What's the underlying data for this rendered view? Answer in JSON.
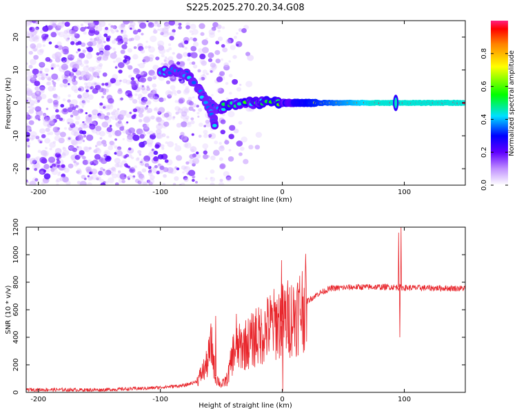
{
  "title": "S225.2025.270.20.34.G08",
  "spectrogram": {
    "type": "heatmap",
    "xlabel": "Height of straight line (km)",
    "ylabel": "Frequency (Hz)",
    "xlim": [
      -210,
      150
    ],
    "ylim": [
      -25,
      25
    ],
    "xticks": [
      -200,
      -100,
      0,
      100
    ],
    "yticks": [
      -20,
      -10,
      0,
      10,
      20
    ],
    "colorbar": {
      "label": "Normalized spectral amplitude",
      "range": [
        0.0,
        1.0
      ],
      "ticks": [
        0.0,
        0.2,
        0.4,
        0.6,
        0.8
      ],
      "tick_labels": [
        "0.0",
        "0.2",
        "0.4",
        "0.6",
        "0.8"
      ]
    },
    "ridge": {
      "points": [
        [
          -100,
          9
        ],
        [
          -90,
          10
        ],
        [
          -80,
          9
        ],
        [
          -72,
          6
        ],
        [
          -65,
          3
        ],
        [
          -60,
          0
        ],
        [
          -55,
          -2
        ],
        [
          -50,
          -1.5
        ],
        [
          -45,
          -1
        ],
        [
          -40,
          -0.5
        ],
        [
          -30,
          0
        ],
        [
          -20,
          0
        ],
        [
          -10,
          0.5
        ],
        [
          0,
          0
        ],
        [
          150,
          0
        ]
      ],
      "branch": [
        [
          -65,
          2
        ],
        [
          -60,
          -2
        ],
        [
          -56,
          -5
        ],
        [
          -54,
          -7
        ]
      ],
      "spike_x": 93
    },
    "colors": [
      "#e8dcfa",
      "#8000ff",
      "#0000ff",
      "#00ffff",
      "#00ff00",
      "#ffff00",
      "#ff0000"
    ]
  },
  "snr": {
    "type": "line",
    "xlabel": "Height of straight line (km)",
    "ylabel": "SNR (10 * v/v)",
    "xlim": [
      -210,
      150
    ],
    "ylim": [
      0,
      1200
    ],
    "xticks": [
      -200,
      -100,
      0,
      100
    ],
    "yticks": [
      0,
      200,
      400,
      600,
      800,
      1000,
      1200
    ],
    "line_color": "#e8242a",
    "envelope": [
      [
        -210,
        20
      ],
      [
        -150,
        18
      ],
      [
        -110,
        30
      ],
      [
        -80,
        50
      ],
      [
        -70,
        80
      ],
      [
        -62,
        200
      ],
      [
        -58,
        350
      ],
      [
        -55,
        120
      ],
      [
        -50,
        50
      ],
      [
        -45,
        100
      ],
      [
        -40,
        300
      ],
      [
        -30,
        350
      ],
      [
        -20,
        400
      ],
      [
        -10,
        480
      ],
      [
        0,
        520
      ],
      [
        10,
        560
      ],
      [
        20,
        660
      ],
      [
        30,
        720
      ],
      [
        40,
        755
      ],
      [
        60,
        765
      ],
      [
        90,
        765
      ],
      [
        100,
        760
      ],
      [
        150,
        755
      ]
    ],
    "spikes": [
      [
        -55,
        555
      ],
      [
        -38,
        570
      ],
      [
        -22,
        610
      ],
      [
        -5,
        640
      ],
      [
        -1,
        960
      ],
      [
        0,
        10
      ],
      [
        95,
        1160
      ],
      [
        96,
        400
      ],
      [
        97,
        1200
      ]
    ]
  }
}
